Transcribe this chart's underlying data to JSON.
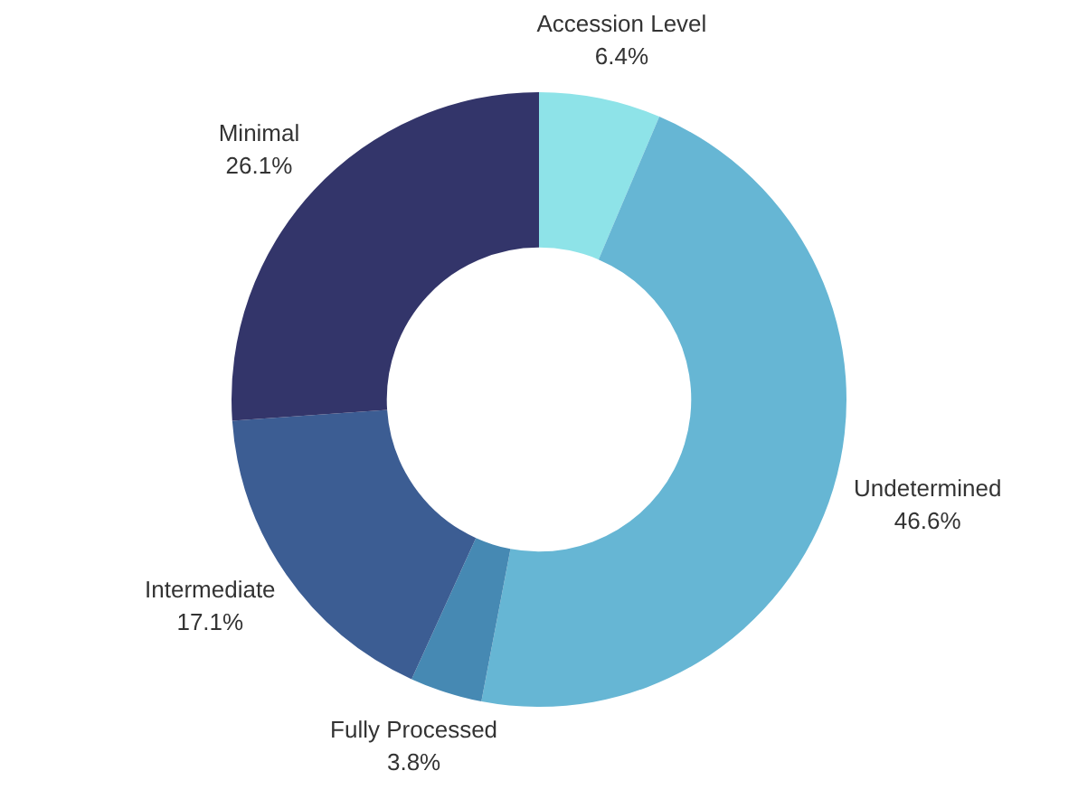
{
  "chart_data": {
    "type": "donut",
    "categories": [
      "Accession Level",
      "Undetermined",
      "Fully Processed",
      "Intermediate",
      "Minimal"
    ],
    "values": [
      6.4,
      46.6,
      3.8,
      17.1,
      26.1
    ],
    "colors": [
      "#8ee3e8",
      "#66b6d4",
      "#4689b3",
      "#3c5d93",
      "#33356a"
    ],
    "value_labels": [
      "6.4%",
      "46.6%",
      "3.8%",
      "17.1%",
      "26.1%"
    ],
    "legend": false
  }
}
